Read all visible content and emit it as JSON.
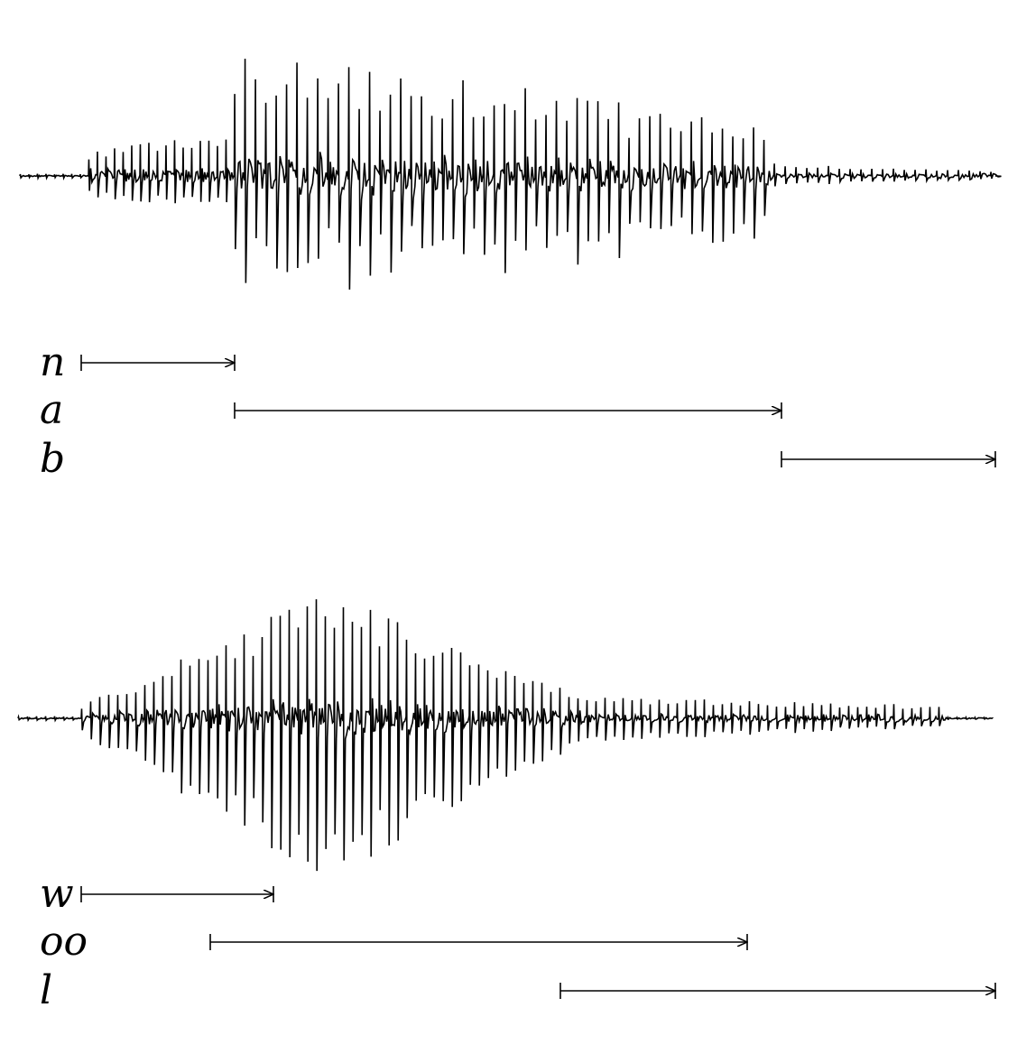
{
  "panels": [
    {
      "word": "nab",
      "segments": [
        {
          "label": "n"
        },
        {
          "label": "a"
        },
        {
          "label": "b"
        }
      ]
    },
    {
      "word": "wool",
      "segments": [
        {
          "label": "w"
        },
        {
          "label": "oo"
        },
        {
          "label": "l"
        }
      ]
    }
  ],
  "colors": {
    "ink": "#000000",
    "background": "#ffffff"
  }
}
